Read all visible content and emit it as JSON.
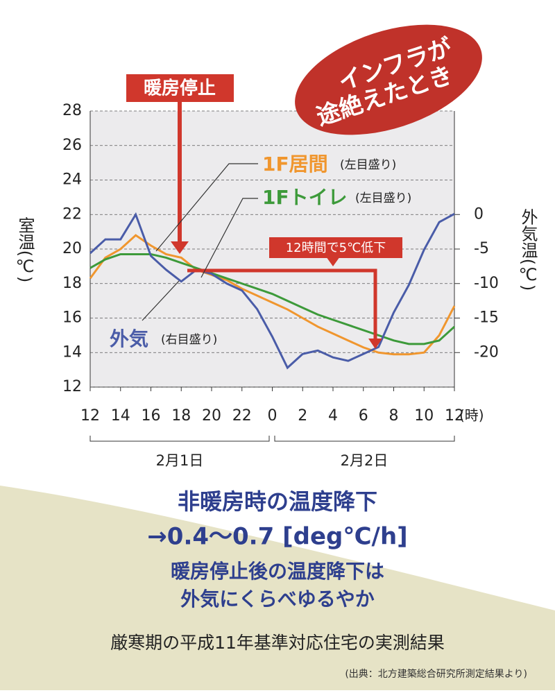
{
  "chart_data": {
    "type": "line",
    "x": [
      0,
      1,
      2,
      3,
      4,
      5,
      6,
      7,
      8,
      9,
      10,
      11,
      12,
      13,
      14,
      15,
      16,
      17,
      18,
      19,
      20,
      21,
      22,
      23,
      24
    ],
    "xlim": [
      0,
      24
    ],
    "xticks": [
      {
        "value": 0,
        "label": "12"
      },
      {
        "value": 2,
        "label": "14"
      },
      {
        "value": 4,
        "label": "16"
      },
      {
        "value": 6,
        "label": "18"
      },
      {
        "value": 8,
        "label": "20"
      },
      {
        "value": 10,
        "label": "22"
      },
      {
        "value": 12,
        "label": "0"
      },
      {
        "value": 14,
        "label": "2"
      },
      {
        "value": 16,
        "label": "4"
      },
      {
        "value": 18,
        "label": "6"
      },
      {
        "value": 20,
        "label": "8"
      },
      {
        "value": 22,
        "label": "10"
      },
      {
        "value": 24,
        "label": "12"
      }
    ],
    "x_unit": "(時)",
    "ylim": [
      12,
      28
    ],
    "yticks": [
      12,
      14,
      16,
      18,
      20,
      22,
      24,
      26,
      28
    ],
    "y2lim": [
      -25,
      15
    ],
    "y2ticks": [
      -20,
      -15,
      -10,
      -5,
      0
    ],
    "ylabel": "室温(℃)",
    "y2label": "外気温(℃)",
    "grid": true,
    "date_labels": [
      "2月1日",
      "2月2日"
    ],
    "series": [
      {
        "name": "1F居間",
        "color": "#f0962e",
        "values": [
          18.3,
          19.5,
          20.0,
          20.8,
          20.2,
          19.7,
          19.5,
          18.8,
          18.5,
          18.2,
          17.7,
          17.3,
          16.9,
          16.5,
          16.0,
          15.5,
          15.1,
          14.7,
          14.3,
          14.0,
          13.9,
          13.9,
          14.0,
          15.0,
          16.7
        ]
      },
      {
        "name": "1Fトイレ",
        "color": "#3d9a3a",
        "values": [
          18.9,
          19.4,
          19.7,
          19.7,
          19.7,
          19.5,
          19.2,
          18.9,
          18.6,
          18.3,
          18.0,
          17.7,
          17.4,
          17.0,
          16.6,
          16.2,
          15.9,
          15.6,
          15.3,
          15.0,
          14.7,
          14.5,
          14.5,
          14.7,
          15.5
        ]
      },
      {
        "name": "外気",
        "color": "#4a5ca8",
        "axis": "y2",
        "values": [
          -5.6,
          -3.6,
          -3.6,
          0,
          -6,
          -8,
          -9.7,
          -8,
          -8.6,
          -10,
          -11,
          -13.7,
          -17.7,
          -22.2,
          -20.2,
          -19.7,
          -20.7,
          -21.2,
          -20.2,
          -19.2,
          -14.2,
          -10.2,
          -5.1,
          -1.1,
          0.1
        ]
      }
    ],
    "annotations": {
      "left_scale": "(左目盛り)",
      "right_scale": "(右目盛り)",
      "heating_stop": "暖房停止",
      "drop": "12時間で5℃低下",
      "bubble": [
        "インフラが",
        "途絶えたとき"
      ]
    }
  },
  "captions": {
    "headline": "非暖房時の温度降下",
    "rate": "→0.4〜0.7 [deg℃/h]",
    "note": [
      "暖房停止後の温度降下は",
      "外気にくらべゆるやか"
    ],
    "summary": "厳寒期の平成11年基準対応住宅の実測結果",
    "source": "(出典：北方建築総合研究所測定結果より)"
  }
}
